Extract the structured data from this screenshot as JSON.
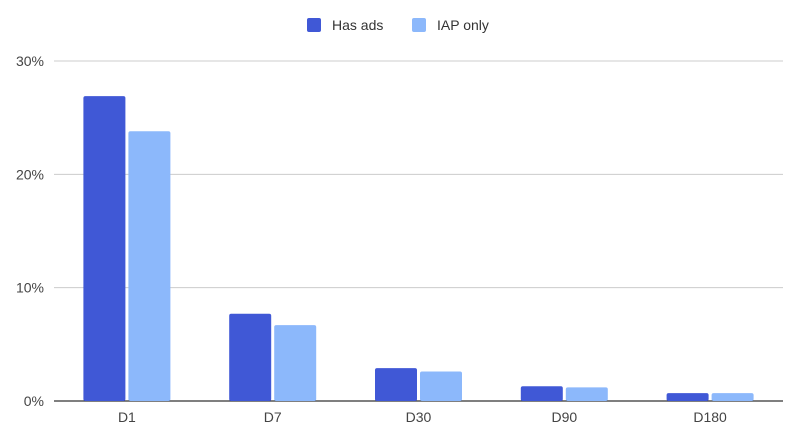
{
  "chart_data": {
    "type": "bar",
    "title": "",
    "xlabel": "",
    "ylabel": "",
    "categories": [
      "D1",
      "D7",
      "D30",
      "D90",
      "D180"
    ],
    "series": [
      {
        "name": "Has ads",
        "color": "#4058d6",
        "values": [
          26.9,
          7.7,
          2.9,
          1.3,
          0.7
        ]
      },
      {
        "name": "IAP only",
        "color": "#8cb8fb",
        "values": [
          23.8,
          6.7,
          2.6,
          1.2,
          0.7
        ]
      }
    ],
    "ylim": [
      0,
      30
    ],
    "yticks": [
      0,
      10,
      20,
      30
    ],
    "ytick_labels": [
      "0%",
      "10%",
      "20%",
      "30%"
    ],
    "grid": true,
    "legend_position": "top-center"
  }
}
